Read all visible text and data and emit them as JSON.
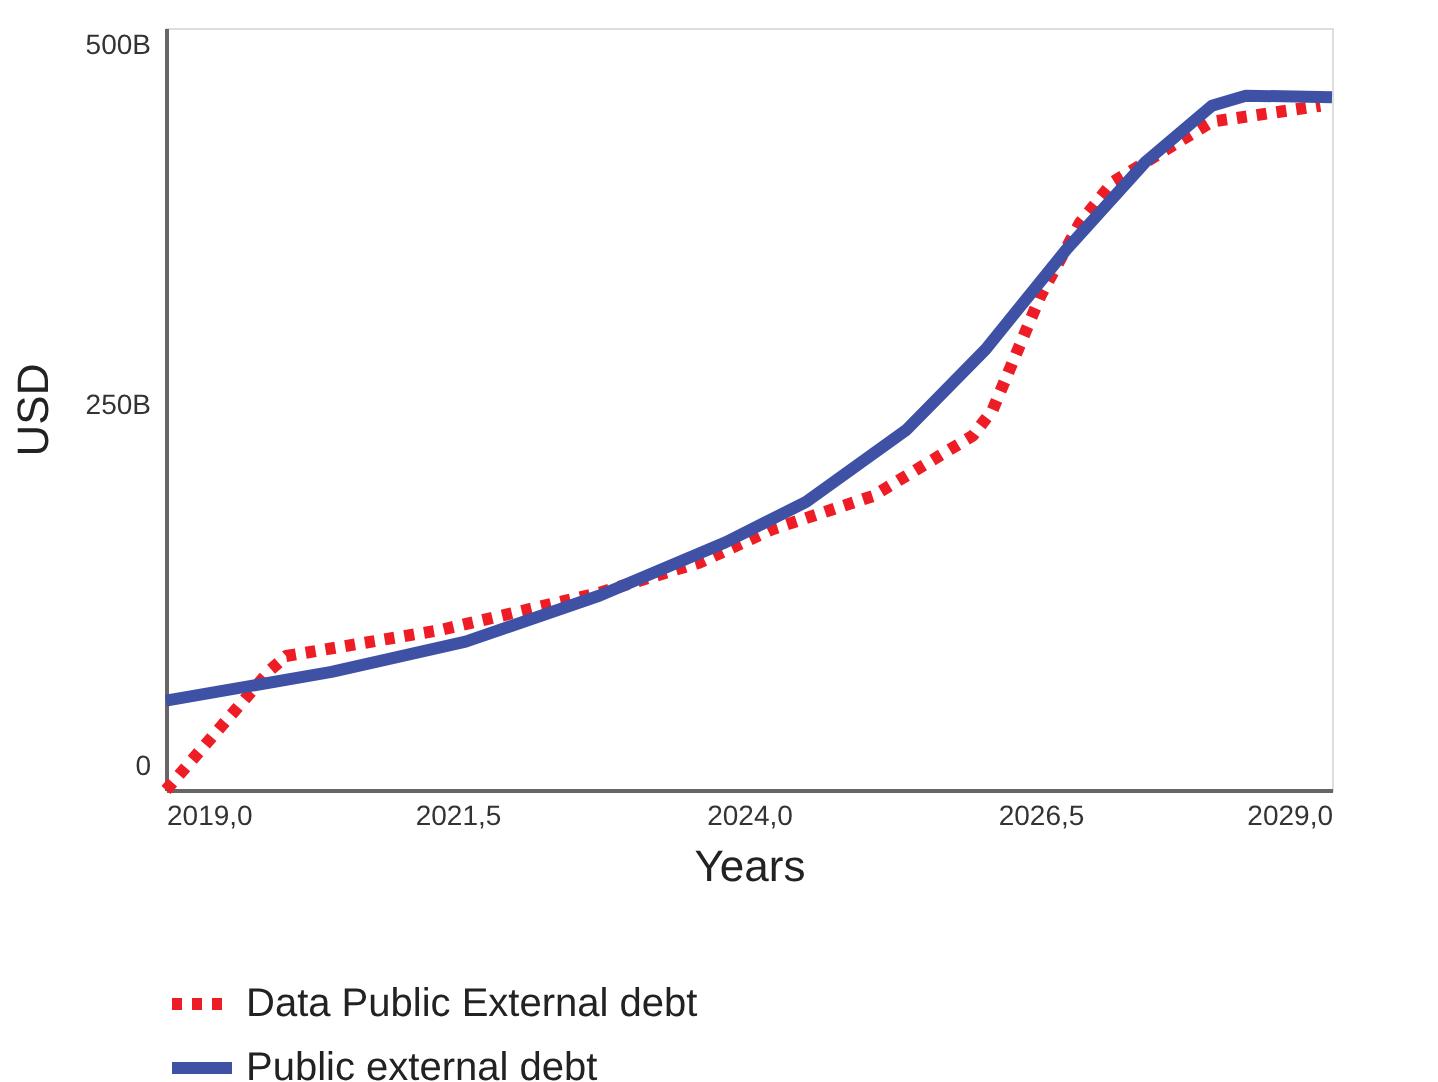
{
  "chart_data": {
    "type": "line",
    "xlabel": "Years",
    "ylabel": "USD",
    "xlim": [
      2019,
      2029
    ],
    "xticks": [
      {
        "value": 2019,
        "label": "2019,0"
      },
      {
        "value": 2021.5,
        "label": "2021,5"
      },
      {
        "value": 2024,
        "label": "2024,0"
      },
      {
        "value": 2026.5,
        "label": "2026,5"
      },
      {
        "value": 2029,
        "label": "2029,0"
      }
    ],
    "ylim": [
      -17,
      512
    ],
    "yticks": [
      {
        "value": 0,
        "label": "0"
      },
      {
        "value": 250,
        "label": "250B"
      },
      {
        "value": 500,
        "label": "500B"
      }
    ],
    "grid": false,
    "legend": "bottom",
    "series": [
      {
        "name": "Data Public External debt",
        "color": "#ee1c25",
        "line_style": "dotted",
        "x": [
          2019,
          2019.89,
          2020.03,
          2021.35,
          2022.72,
          2023.58,
          2024.2,
          2025.06,
          2025.92,
          2026.09,
          2026.5,
          2026.84,
          2027.12,
          2027.97,
          2028.9
        ],
        "values": [
          -17,
          66,
          76,
          94,
          120,
          141,
          164,
          187,
          229,
          247,
          326,
          377,
          405,
          447,
          458
        ]
      },
      {
        "name": "Public external debt",
        "color": "#3f51a5",
        "line_style": "solid",
        "x": [
          2019,
          2020.42,
          2021.57,
          2022.72,
          2023.8,
          2024.49,
          2025.35,
          2026.03,
          2026.72,
          2027.4,
          2027.97,
          2028.26,
          2029
        ],
        "values": [
          45,
          65,
          86,
          118,
          155,
          183,
          233,
          289,
          358,
          419,
          458,
          465,
          464
        ]
      }
    ]
  }
}
